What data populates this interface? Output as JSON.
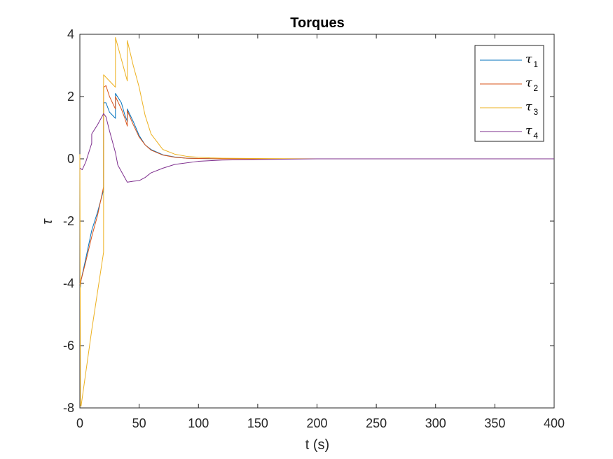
{
  "chart_data": {
    "type": "line",
    "title": "Torques",
    "xlabel": "t (s)",
    "ylabel": "τ",
    "xlim": [
      0,
      400
    ],
    "ylim": [
      -8,
      4
    ],
    "xticks": [
      0,
      50,
      100,
      150,
      200,
      250,
      300,
      350,
      400
    ],
    "yticks": [
      -8,
      -6,
      -4,
      -2,
      0,
      2,
      4
    ],
    "grid": false,
    "legend_position": "top-right",
    "series": [
      {
        "name": "τ1",
        "base": "τ",
        "sub": "1",
        "color": "#0072BD",
        "x": [
          0,
          0.5,
          1,
          5,
          10,
          15,
          20,
          20.01,
          22,
          25,
          30,
          30.01,
          35,
          38,
          40,
          40.01,
          45,
          50,
          55,
          60,
          70,
          80,
          90,
          100,
          120,
          150,
          200,
          250,
          300,
          350,
          400
        ],
        "y": [
          -4.1,
          -4.12,
          -3.9,
          -3.2,
          -2.3,
          -1.7,
          -1.0,
          1.8,
          1.8,
          1.5,
          1.3,
          2.1,
          1.8,
          1.4,
          1.2,
          1.6,
          1.2,
          0.75,
          0.45,
          0.3,
          0.13,
          0.06,
          0.02,
          0.01,
          0,
          0,
          0,
          0,
          0,
          0,
          0
        ]
      },
      {
        "name": "τ2",
        "base": "τ",
        "sub": "2",
        "color": "#D95319",
        "x": [
          0,
          0.5,
          1,
          5,
          10,
          15,
          20,
          20.01,
          22,
          25,
          30,
          30.01,
          35,
          38,
          40,
          40.01,
          45,
          50,
          55,
          60,
          70,
          80,
          90,
          100,
          120,
          150,
          200,
          250,
          300,
          350,
          400
        ],
        "y": [
          -4.0,
          -4.05,
          -3.9,
          -3.3,
          -2.5,
          -1.8,
          -0.9,
          2.3,
          2.35,
          2.0,
          1.6,
          2.0,
          1.6,
          1.3,
          1.05,
          1.55,
          1.1,
          0.7,
          0.45,
          0.28,
          0.12,
          0.05,
          0.02,
          0.01,
          0,
          0,
          0,
          0,
          0,
          0,
          0
        ]
      },
      {
        "name": "τ3",
        "base": "τ",
        "sub": "3",
        "color": "#EDB120",
        "x": [
          0,
          0.5,
          1,
          10,
          20,
          20.01,
          25,
          30,
          30.01,
          35,
          40,
          40.01,
          45,
          50,
          55,
          60,
          70,
          80,
          90,
          100,
          110,
          120,
          150,
          200,
          250,
          300,
          350,
          400
        ],
        "y": [
          0.15,
          -7.9,
          -7.95,
          -5.5,
          -3.0,
          2.7,
          2.5,
          2.3,
          3.9,
          3.2,
          2.5,
          3.8,
          3.0,
          2.3,
          1.4,
          0.8,
          0.3,
          0.15,
          0.08,
          0.05,
          0.03,
          0.02,
          0.01,
          0,
          0,
          0,
          0,
          0
        ]
      },
      {
        "name": "τ4",
        "base": "τ",
        "sub": "4",
        "color": "#7E2F8E",
        "x": [
          0,
          2,
          5,
          10,
          10.01,
          15,
          20,
          22,
          25,
          30,
          32,
          40,
          45,
          50,
          55,
          60,
          70,
          80,
          100,
          120,
          150,
          200,
          250,
          300,
          350,
          400
        ],
        "y": [
          -0.3,
          -0.35,
          -0.1,
          0.5,
          0.8,
          1.1,
          1.45,
          1.35,
          0.9,
          0.2,
          -0.2,
          -0.75,
          -0.72,
          -0.7,
          -0.6,
          -0.45,
          -0.3,
          -0.18,
          -0.08,
          -0.04,
          -0.02,
          0,
          0,
          0,
          0,
          0
        ]
      }
    ]
  }
}
